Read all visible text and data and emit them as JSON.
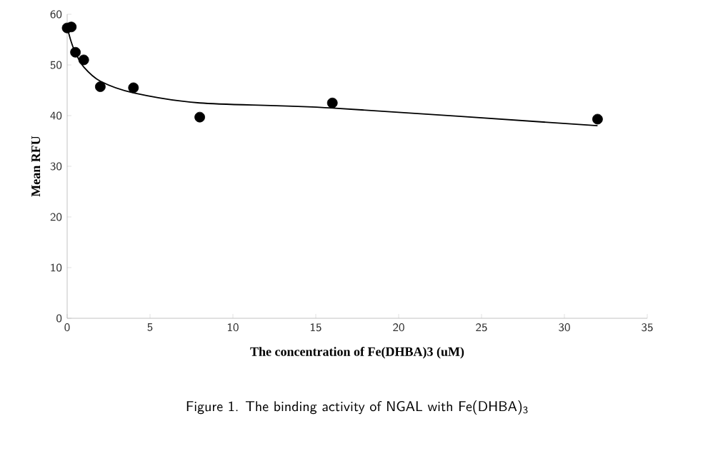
{
  "chart_data": {
    "type": "scatter",
    "xlabel": "The concentration of Fe(DHBA)3 (uM)",
    "ylabel": "Mean RFU",
    "annotations": [
      "Figure 1. The binding activity of NGAL with Fe(DHBA)$_{3}$"
    ],
    "xlim": [
      0,
      35
    ],
    "xticks": [
      0,
      5,
      10,
      15,
      20,
      25,
      30,
      35
    ],
    "ylim": [
      0,
      60
    ],
    "yticks": [
      0,
      10,
      20,
      30,
      40,
      50,
      60
    ],
    "grid": false,
    "marker": "circle",
    "series": [
      {
        "type": "scatter",
        "color": "#000000",
        "x": [
          0,
          0.25,
          0.5,
          1,
          2,
          4,
          8,
          16,
          32
        ],
        "values": [
          57.3,
          57.5,
          52.5,
          51,
          45.7,
          45.5,
          39.7,
          42.5,
          39.3
        ]
      },
      {
        "type": "line",
        "color": "#000000",
        "marker": "none",
        "x": [
          0,
          0.25,
          0.5,
          1,
          2,
          4,
          8,
          16,
          32
        ],
        "values": [
          57.4,
          54.5,
          52.4,
          49.6,
          46.8,
          44.5,
          42.5,
          41.5,
          38
        ]
      }
    ]
  }
}
